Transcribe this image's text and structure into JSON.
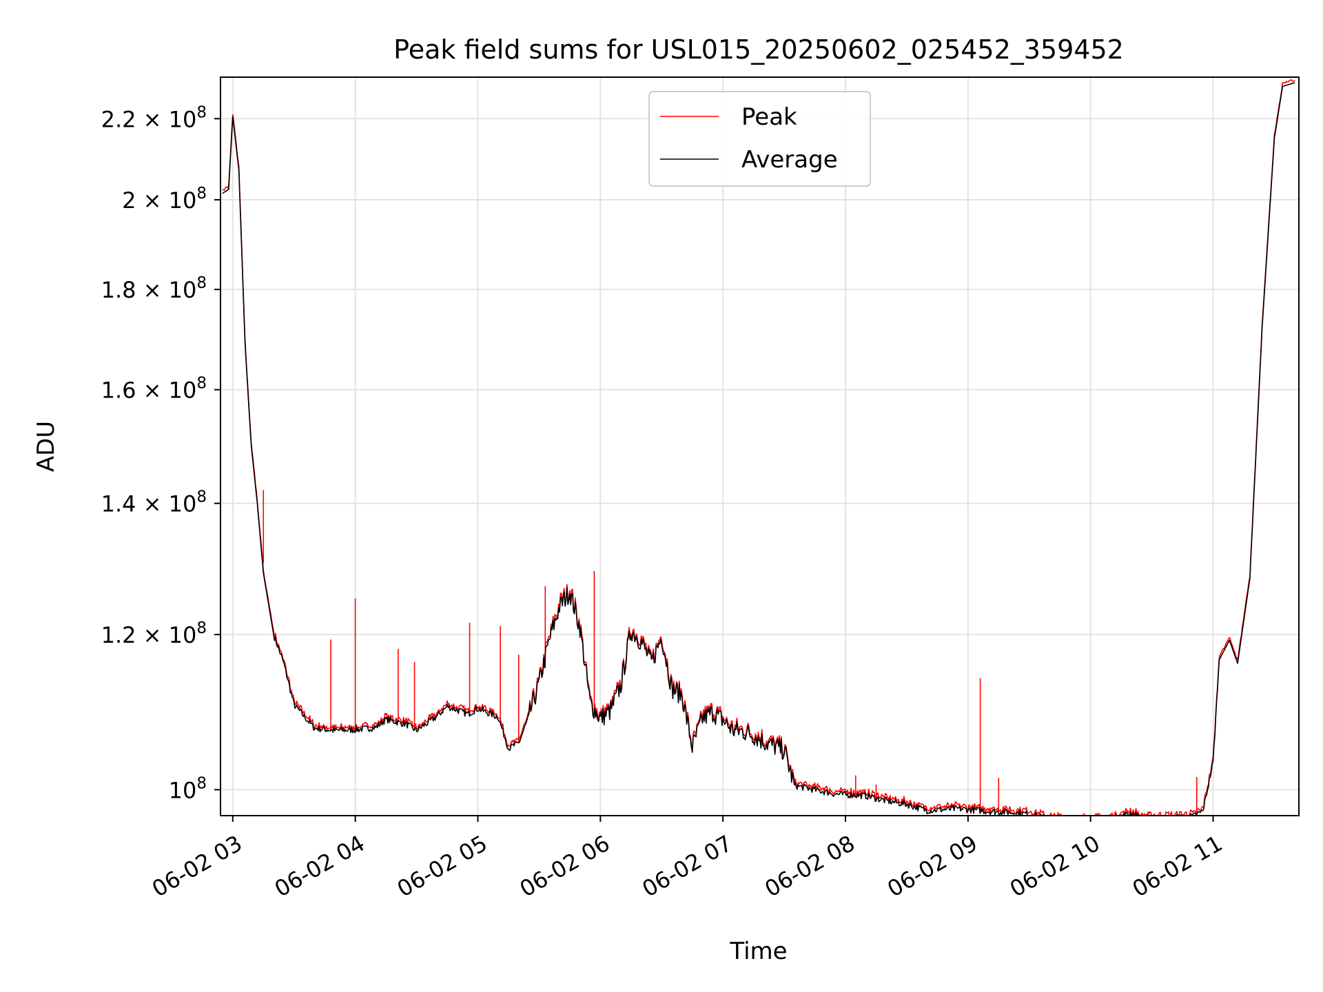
{
  "chart_data": {
    "type": "line",
    "title": "Peak field sums for USL015_20250602_025452_359452",
    "xlabel": "Time",
    "ylabel": "ADU",
    "yscale": "log",
    "grid": true,
    "legend_position": "upper center",
    "xlim": [
      "2025-06-02 02:54",
      "2025-06-02 11:42"
    ],
    "ylim": [
      97000000,
      231000000
    ],
    "x_ticks": [
      {
        "t": "2025-06-02 03:00",
        "label": "06-02 03"
      },
      {
        "t": "2025-06-02 04:00",
        "label": "06-02 04"
      },
      {
        "t": "2025-06-02 05:00",
        "label": "06-02 05"
      },
      {
        "t": "2025-06-02 06:00",
        "label": "06-02 06"
      },
      {
        "t": "2025-06-02 07:00",
        "label": "06-02 07"
      },
      {
        "t": "2025-06-02 08:00",
        "label": "06-02 08"
      },
      {
        "t": "2025-06-02 09:00",
        "label": "06-02 09"
      },
      {
        "t": "2025-06-02 10:00",
        "label": "06-02 10"
      },
      {
        "t": "2025-06-02 11:00",
        "label": "06-02 11"
      }
    ],
    "y_ticks": [
      {
        "value": 100000000,
        "mantissa": "",
        "exp": "8"
      },
      {
        "value": 120000000,
        "mantissa": "1.2",
        "exp": "8"
      },
      {
        "value": 140000000,
        "mantissa": "1.4",
        "exp": "8"
      },
      {
        "value": 160000000,
        "mantissa": "1.6",
        "exp": "8"
      },
      {
        "value": 180000000,
        "mantissa": "1.8",
        "exp": "8"
      },
      {
        "value": 200000000,
        "mantissa": "2",
        "exp": "8"
      },
      {
        "value": 220000000,
        "mantissa": "2.2",
        "exp": "8"
      }
    ],
    "series": [
      {
        "name": "Average",
        "color": "#000000",
        "points": [
          [
            "2025-06-02 02:55",
            201500000
          ],
          [
            "2025-06-02 02:58",
            202500000
          ],
          [
            "2025-06-02 03:00",
            220500000
          ],
          [
            "2025-06-02 03:03",
            207000000
          ],
          [
            "2025-06-02 03:06",
            169000000
          ],
          [
            "2025-06-02 03:09",
            150000000
          ],
          [
            "2025-06-02 03:12",
            140000000
          ],
          [
            "2025-06-02 03:15",
            129000000
          ],
          [
            "2025-06-02 03:20",
            120000000
          ],
          [
            "2025-06-02 03:25",
            116000000
          ],
          [
            "2025-06-02 03:30",
            110500000
          ],
          [
            "2025-06-02 03:40",
            107500000
          ],
          [
            "2025-06-02 03:50",
            107200000
          ],
          [
            "2025-06-02 04:00",
            107300000
          ],
          [
            "2025-06-02 04:10",
            107600000
          ],
          [
            "2025-06-02 04:15",
            108600000
          ],
          [
            "2025-06-02 04:25",
            108000000
          ],
          [
            "2025-06-02 04:30",
            107200000
          ],
          [
            "2025-06-02 04:40",
            109000000
          ],
          [
            "2025-06-02 04:45",
            110300000
          ],
          [
            "2025-06-02 04:55",
            109300000
          ],
          [
            "2025-06-02 05:00",
            110000000
          ],
          [
            "2025-06-02 05:10",
            108900000
          ],
          [
            "2025-06-02 05:15",
            105000000
          ],
          [
            "2025-06-02 05:20",
            105600000
          ],
          [
            "2025-06-02 05:25",
            109000000
          ],
          [
            "2025-06-02 05:30",
            113300000
          ],
          [
            "2025-06-02 05:35",
            119200000
          ],
          [
            "2025-06-02 05:40",
            124000000
          ],
          [
            "2025-06-02 05:45",
            126200000
          ],
          [
            "2025-06-02 05:50",
            121000000
          ],
          [
            "2025-06-02 05:55",
            110700000
          ],
          [
            "2025-06-02 06:00",
            108700000
          ],
          [
            "2025-06-02 06:05",
            109700000
          ],
          [
            "2025-06-02 06:10",
            113000000
          ],
          [
            "2025-06-02 06:15",
            120600000
          ],
          [
            "2025-06-02 06:20",
            119000000
          ],
          [
            "2025-06-02 06:25",
            116000000
          ],
          [
            "2025-06-02 06:30",
            119700000
          ],
          [
            "2025-06-02 06:35",
            112600000
          ],
          [
            "2025-06-02 06:40",
            111700000
          ],
          [
            "2025-06-02 06:45",
            105100000
          ],
          [
            "2025-06-02 06:50",
            108700000
          ],
          [
            "2025-06-02 06:55",
            109500000
          ],
          [
            "2025-06-02 07:00",
            108500000
          ],
          [
            "2025-06-02 07:05",
            107200000
          ],
          [
            "2025-06-02 07:10",
            107100000
          ],
          [
            "2025-06-02 07:15",
            106600000
          ],
          [
            "2025-06-02 07:20",
            105800000
          ],
          [
            "2025-06-02 07:30",
            104700000
          ],
          [
            "2025-06-02 07:35",
            100500000
          ],
          [
            "2025-06-02 07:45",
            100000000
          ],
          [
            "2025-06-02 07:55",
            99500000
          ],
          [
            "2025-06-02 08:10",
            99300000
          ],
          [
            "2025-06-02 08:20",
            98700000
          ],
          [
            "2025-06-02 08:30",
            98300000
          ],
          [
            "2025-06-02 08:40",
            97600000
          ],
          [
            "2025-06-02 08:55",
            97800000
          ],
          [
            "2025-06-02 09:10",
            97500000
          ],
          [
            "2025-06-02 09:20",
            97400000
          ],
          [
            "2025-06-02 09:30",
            97200000
          ],
          [
            "2025-06-02 09:40",
            96600000
          ],
          [
            "2025-06-02 09:50",
            96500000
          ],
          [
            "2025-06-02 10:00",
            96500000
          ],
          [
            "2025-06-02 10:10",
            96600000
          ],
          [
            "2025-06-02 10:20",
            97300000
          ],
          [
            "2025-06-02 10:25",
            96700000
          ],
          [
            "2025-06-02 10:35",
            96700000
          ],
          [
            "2025-06-02 10:50",
            96900000
          ],
          [
            "2025-06-02 10:55",
            97500000
          ],
          [
            "2025-06-02 11:00",
            103300000
          ],
          [
            "2025-06-02 11:03",
            116500000
          ],
          [
            "2025-06-02 11:08",
            119200000
          ],
          [
            "2025-06-02 11:12",
            116000000
          ],
          [
            "2025-06-02 11:18",
            128200000
          ],
          [
            "2025-06-02 11:24",
            172000000
          ],
          [
            "2025-06-02 11:30",
            215000000
          ],
          [
            "2025-06-02 11:34",
            228500000
          ],
          [
            "2025-06-02 11:40",
            229500000
          ]
        ]
      },
      {
        "name": "Peak",
        "color": "#ff0000",
        "spikes": [
          [
            "2025-06-02 03:15",
            142200000
          ],
          [
            "2025-06-02 03:48",
            119300000
          ],
          [
            "2025-06-02 04:00",
            125200000
          ],
          [
            "2025-06-02 04:21",
            118000000
          ],
          [
            "2025-06-02 04:29",
            116200000
          ],
          [
            "2025-06-02 04:56",
            121700000
          ],
          [
            "2025-06-02 05:11",
            121200000
          ],
          [
            "2025-06-02 05:20",
            117200000
          ],
          [
            "2025-06-02 05:33",
            127000000
          ],
          [
            "2025-06-02 05:57",
            129300000
          ],
          [
            "2025-06-02 07:35",
            101100000
          ],
          [
            "2025-06-02 08:05",
            101700000
          ],
          [
            "2025-06-02 08:15",
            100600000
          ],
          [
            "2025-06-02 09:06",
            114000000
          ],
          [
            "2025-06-02 09:15",
            101400000
          ],
          [
            "2025-06-02 10:52",
            101500000
          ]
        ]
      }
    ]
  }
}
